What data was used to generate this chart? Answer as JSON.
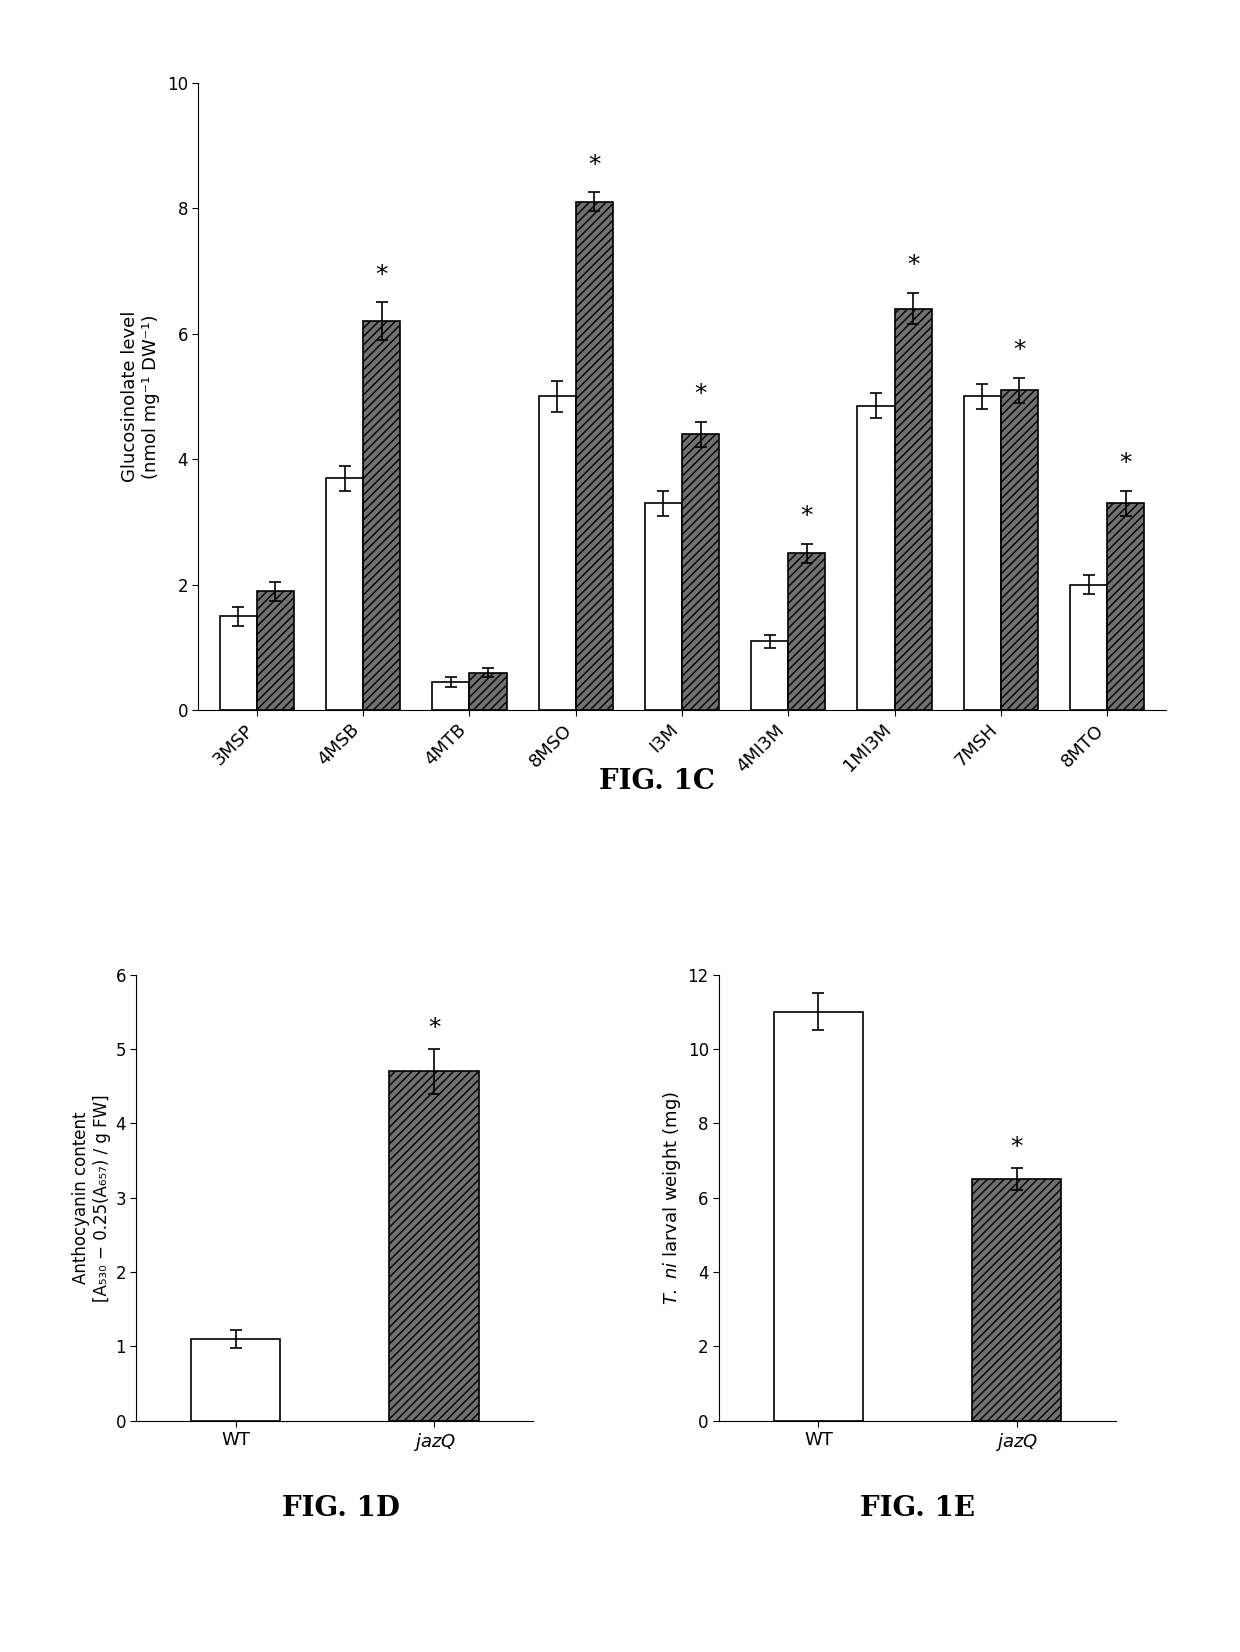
{
  "fig1c": {
    "categories": [
      "3MSP",
      "4MSB",
      "4MTB",
      "8MSO",
      "I3M",
      "4MI3M",
      "1MI3M",
      "7MSH",
      "8MTO"
    ],
    "wt_values": [
      1.5,
      3.7,
      0.45,
      5.0,
      3.3,
      1.1,
      4.85,
      5.0,
      2.0
    ],
    "jazq_values": [
      1.9,
      6.2,
      0.6,
      8.1,
      4.4,
      2.5,
      6.4,
      5.1,
      3.3
    ],
    "wt_err": [
      0.15,
      0.2,
      0.08,
      0.25,
      0.2,
      0.1,
      0.2,
      0.2,
      0.15
    ],
    "jazq_err": [
      0.15,
      0.3,
      0.07,
      0.15,
      0.2,
      0.15,
      0.25,
      0.2,
      0.2
    ],
    "starred": [
      false,
      true,
      false,
      true,
      true,
      true,
      true,
      true,
      true
    ],
    "ylabel": "Glucosinolate level\n(nmol mg⁻¹ DW⁻¹)",
    "ylim": [
      0,
      10
    ],
    "yticks": [
      0,
      2,
      4,
      6,
      8,
      10
    ],
    "fig_label": "FIG. 1C"
  },
  "fig1d": {
    "categories": [
      "WT",
      "jazQ"
    ],
    "values": [
      1.1,
      4.7
    ],
    "errors": [
      0.12,
      0.3
    ],
    "starred": [
      false,
      true
    ],
    "ylabel": "Anthocyanin content\n[A₅₃₀ − 0.25(A₆₅₇) / g FW]",
    "ylim": [
      0,
      6
    ],
    "yticks": [
      0,
      1,
      2,
      3,
      4,
      5,
      6
    ],
    "fig_label": "FIG. 1D"
  },
  "fig1e": {
    "categories": [
      "WT",
      "jazQ"
    ],
    "values": [
      11.0,
      6.5
    ],
    "errors": [
      0.5,
      0.3
    ],
    "starred": [
      false,
      true
    ],
    "ylabel": "T. ni larval weight (mg)",
    "ylim": [
      0,
      12
    ],
    "yticks": [
      0,
      2,
      4,
      6,
      8,
      10,
      12
    ],
    "fig_label": "FIG. 1E"
  },
  "wt_color": "white",
  "jazq_color": "#707070",
  "hatch_pattern": "////",
  "bar_edgecolor": "black",
  "background_color": "white",
  "fig_label_fontsize": 20,
  "axis_label_fontsize": 13,
  "tick_fontsize": 12,
  "star_fontsize": 18,
  "capsize": 4
}
